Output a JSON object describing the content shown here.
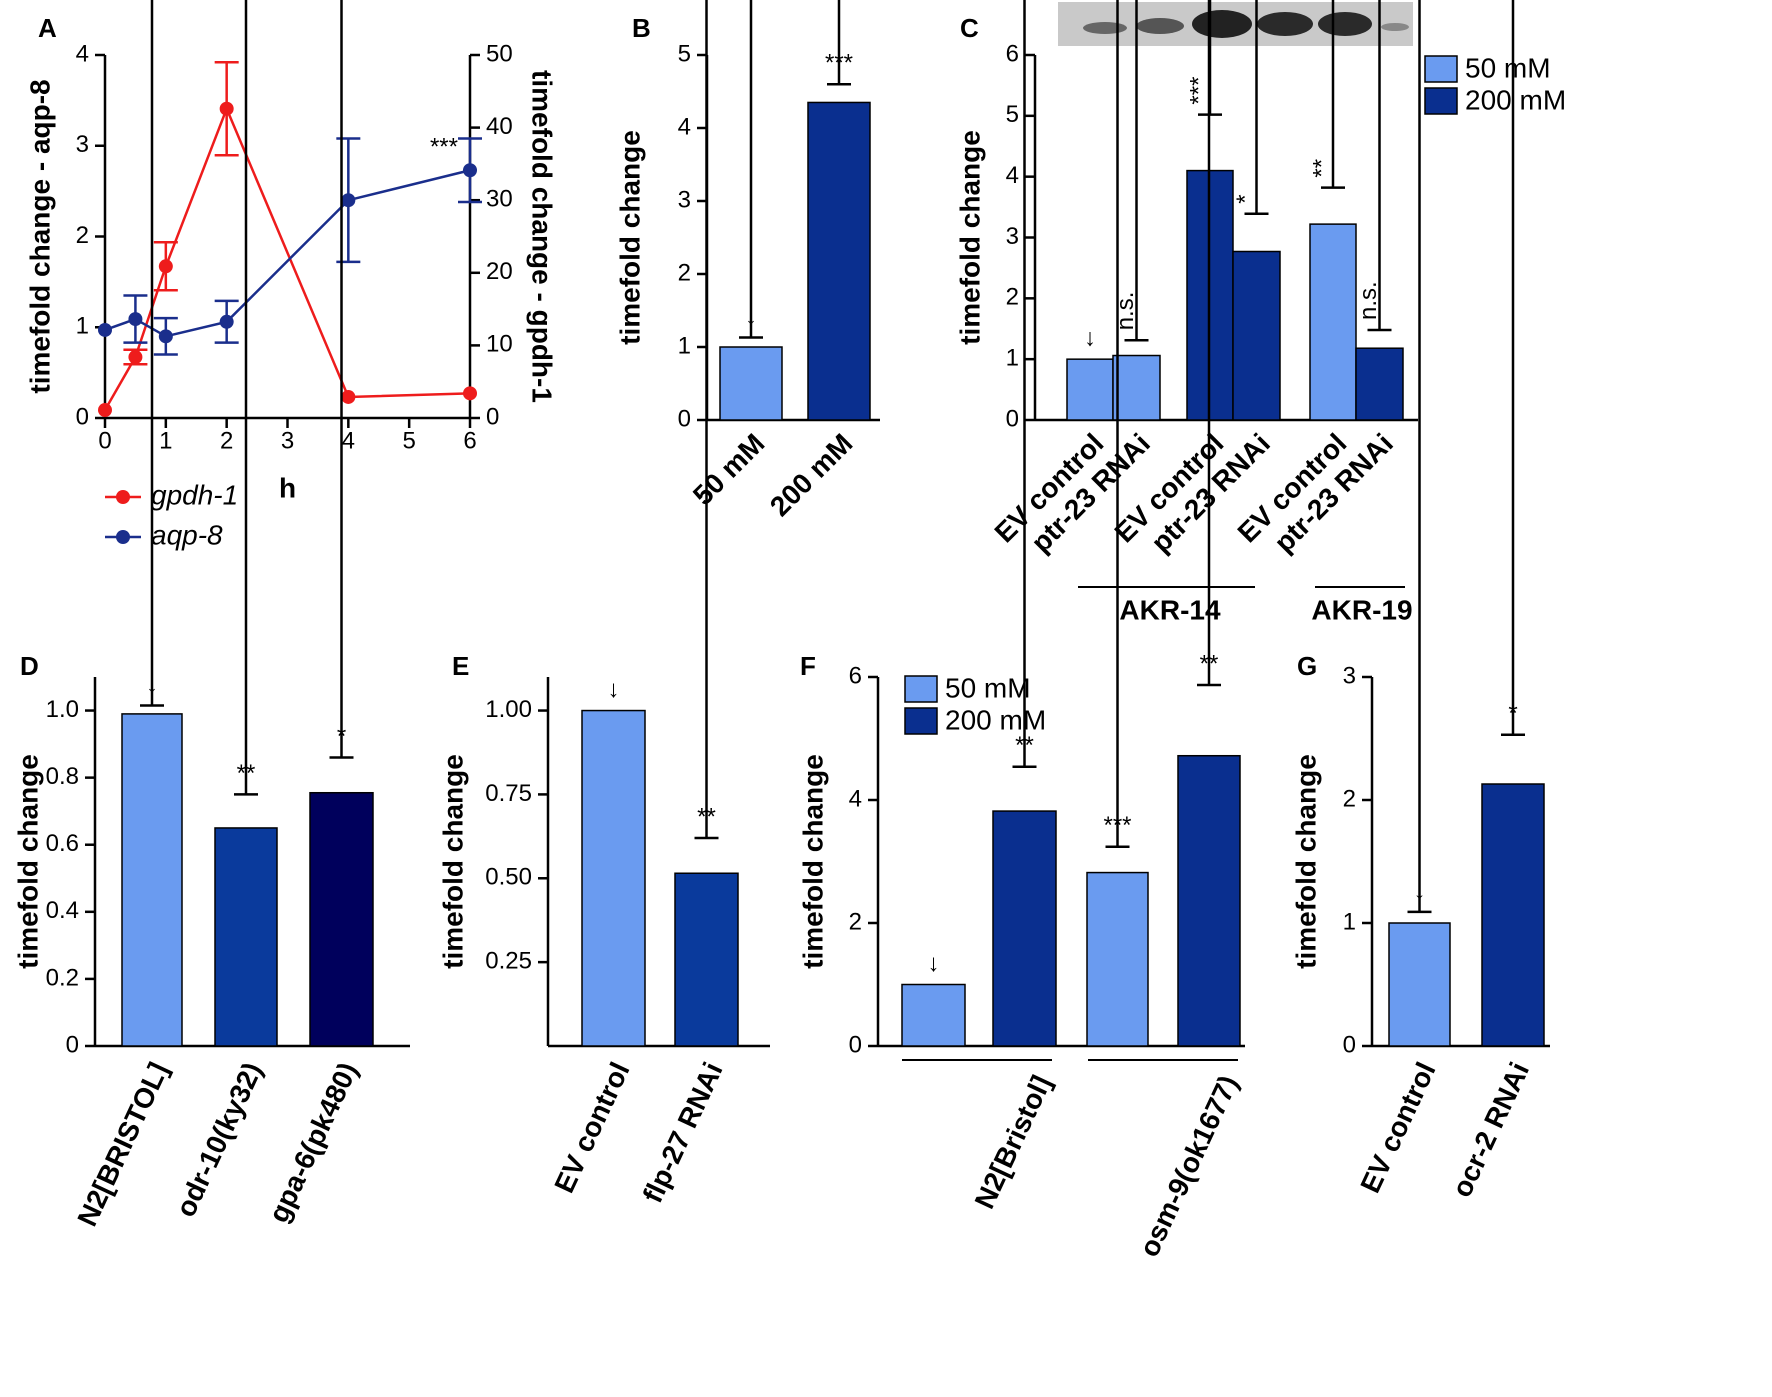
{
  "chart_data": [
    {
      "panel": "A",
      "type": "line",
      "xlabel": "h",
      "ylabel": "timefold change - aqp-8",
      "y2label": "timefold change - gpdh-1",
      "x": [
        0,
        0.5,
        1,
        2,
        4,
        6
      ],
      "xlim": [
        0,
        6
      ],
      "xticks": [
        0,
        1,
        2,
        3,
        4,
        5,
        6
      ],
      "ylim": [
        0,
        4
      ],
      "yticks": [
        0,
        1,
        2,
        3,
        4
      ],
      "y2lim": [
        0,
        50
      ],
      "y2ticks": [
        0,
        10,
        20,
        30,
        40,
        50
      ],
      "series": [
        {
          "name": "gpdh-1",
          "color": "#ee1c1c",
          "axis": "y2",
          "values": [
            1.1,
            8.4,
            20.9,
            42.6,
            2.9,
            3.4
          ],
          "errors": [
            null,
            1,
            3.3,
            6.4,
            null,
            null
          ]
        },
        {
          "name": "aqp-8",
          "color": "#1a2e8c",
          "axis": "y",
          "values": [
            0.97,
            1.09,
            0.9,
            1.06,
            2.4,
            2.73
          ],
          "errors": [
            null,
            0.26,
            0.2,
            0.23,
            0.68,
            0.35
          ]
        }
      ],
      "annotation": "***"
    },
    {
      "panel": "B",
      "type": "bar",
      "ylabel": "timefold change",
      "categories": [
        "50 mM",
        "200 mM"
      ],
      "values": [
        1.0,
        4.35
      ],
      "errors": [
        0.13,
        0.25
      ],
      "colors": [
        "#6a9bf0",
        "#0a2f8f"
      ],
      "annotations": [
        "↓",
        "***"
      ],
      "ylim": [
        0,
        5
      ],
      "yticks": [
        0,
        1,
        2,
        3,
        4,
        5
      ]
    },
    {
      "panel": "C",
      "type": "bar",
      "ylabel": "timefold change",
      "categories": [
        "EV control",
        "ptr-23 RNAi",
        "EV control",
        "ptr-23 RNAi",
        "EV control",
        "ptr-23 RNAi"
      ],
      "values": [
        1.0,
        1.06,
        4.1,
        2.77,
        3.22,
        1.18
      ],
      "errors": [
        0,
        0.25,
        0.92,
        0.62,
        0.6,
        0.3
      ],
      "colors": [
        "#6a9bf0",
        "#6a9bf0",
        "#0a2f8f",
        "#0a2f8f",
        "#6a9bf0",
        "#0a2f8f"
      ],
      "annotations": [
        "↓",
        "n.s.",
        "***",
        "*",
        "**",
        "n.s."
      ],
      "legend": [
        {
          "name": "50 mM",
          "color": "#6a9bf0"
        },
        {
          "name": "200 mM",
          "color": "#0a2f8f"
        }
      ],
      "groups": [
        "AKR-14",
        "AKR-19"
      ],
      "ylim": [
        0,
        6
      ],
      "yticks": [
        0,
        1,
        2,
        3,
        4,
        5,
        6
      ]
    },
    {
      "panel": "D",
      "type": "bar",
      "ylabel": "timefold change",
      "categories": [
        "N2[BRISTOL]",
        "odr-10(ky32)",
        "gpa-6(pk480)"
      ],
      "values": [
        0.99,
        0.65,
        0.755
      ],
      "errors": [
        0.025,
        0.1,
        0.105
      ],
      "colors": [
        "#6a9bf0",
        "#0a3a9c",
        "#00005c"
      ],
      "annotations": [
        "↓",
        "**",
        "*"
      ],
      "ylim": [
        0,
        1.1
      ],
      "yticks": [
        0,
        0.2,
        0.4,
        0.6,
        0.8,
        {
          "value": 1,
          "label": "1.0"
        }
      ]
    },
    {
      "panel": "E",
      "type": "bar",
      "ylabel": "timefold change",
      "categories": [
        "EV control",
        "flp-27 RNAi"
      ],
      "values": [
        1.0,
        0.515
      ],
      "errors": [
        0,
        0.105
      ],
      "colors": [
        "#6a9bf0",
        "#0a3a9c"
      ],
      "annotations": [
        "↓",
        "**"
      ],
      "ylim": [
        0,
        1.1
      ],
      "yticks": [
        0.25,
        {
          "value": 0.5,
          "label": "0.50"
        },
        0.75,
        {
          "value": 1,
          "label": "1.00"
        }
      ]
    },
    {
      "panel": "F",
      "type": "bar",
      "ylabel": "timefold change",
      "values": [
        1.0,
        3.82,
        2.82,
        4.72
      ],
      "errors": [
        0,
        0.72,
        0.42,
        1.15
      ],
      "colors": [
        "#6a9bf0",
        "#0a2f8f",
        "#6a9bf0",
        "#0a2f8f"
      ],
      "annotations": [
        "↓",
        "**",
        "***",
        "**"
      ],
      "legend": [
        {
          "name": "50 mM",
          "color": "#6a9bf0"
        },
        {
          "name": "200 mM",
          "color": "#0a2f8f"
        }
      ],
      "groups": [
        "N2[Bristol]",
        "osm-9(ok1677)"
      ],
      "ylim": [
        0,
        6
      ],
      "yticks": [
        0,
        2,
        4,
        6
      ]
    },
    {
      "panel": "G",
      "type": "bar",
      "ylabel": "timefold change",
      "categories": [
        "EV control",
        "ocr-2 RNAi"
      ],
      "values": [
        1.0,
        2.13
      ],
      "errors": [
        0.09,
        0.4
      ],
      "colors": [
        "#6a9bf0",
        "#0a2f8f"
      ],
      "annotations": [
        "↓",
        "*"
      ],
      "ylim": [
        0,
        3
      ],
      "yticks": [
        0,
        1,
        2,
        3
      ]
    }
  ]
}
